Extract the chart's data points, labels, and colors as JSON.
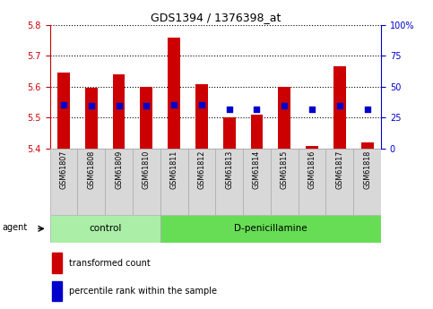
{
  "title": "GDS1394 / 1376398_at",
  "samples": [
    "GSM61807",
    "GSM61808",
    "GSM61809",
    "GSM61810",
    "GSM61811",
    "GSM61812",
    "GSM61813",
    "GSM61814",
    "GSM61815",
    "GSM61816",
    "GSM61817",
    "GSM61818"
  ],
  "bar_tops": [
    5.645,
    5.595,
    5.64,
    5.598,
    5.758,
    5.608,
    5.5,
    5.51,
    5.6,
    5.407,
    5.665,
    5.42
  ],
  "bar_base": 5.4,
  "blue_dots_y": [
    5.54,
    5.537,
    5.539,
    5.538,
    5.54,
    5.54,
    5.527,
    5.527,
    5.538,
    5.527,
    5.538,
    5.527
  ],
  "ylim": [
    5.4,
    5.8
  ],
  "yticks_left": [
    5.4,
    5.5,
    5.6,
    5.7,
    5.8
  ],
  "y2lim": [
    0,
    100
  ],
  "y2ticks": [
    0,
    25,
    50,
    75,
    100
  ],
  "bar_color": "#cc0000",
  "dot_color": "#0000cc",
  "control_bg": "#aaeea8",
  "treatment_bg": "#66dd55",
  "sample_box_bg": "#d8d8d8",
  "left_axis_color": "#cc0000",
  "right_axis_color": "#0000cc",
  "legend_bar": "transformed count",
  "legend_dot": "percentile rank within the sample",
  "bar_width": 0.45,
  "control_count": 4
}
